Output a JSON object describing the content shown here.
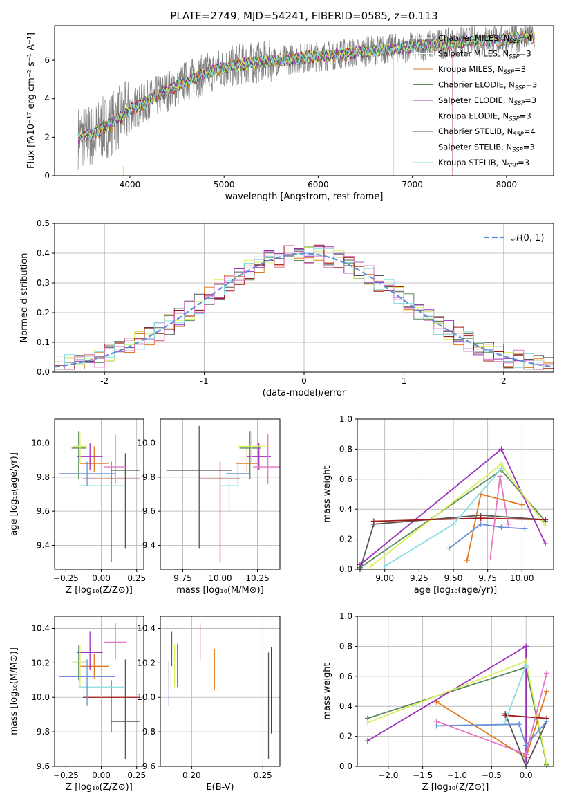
{
  "chart_data": [
    {
      "id": "spectrum",
      "type": "line",
      "title": "PLATE=2749, MJD=54241, FIBERID=0585, z=0.113",
      "xlabel": "wavelength [Angstrom, rest frame]",
      "ylabel": "Flux [fλ10⁻¹⁷ erg cm⁻² s⁻¹ A⁻¹]",
      "xlim": [
        3200,
        8500
      ],
      "ylim": [
        0,
        7.8
      ],
      "xticks": [
        4000,
        5000,
        6000,
        7000,
        8000
      ],
      "yticks": [
        0,
        2,
        4,
        6
      ],
      "legend_position": "top-right",
      "data_continuum": {
        "x": [
          3450,
          3600,
          3800,
          4000,
          4200,
          4400,
          4600,
          4800,
          5000,
          5200,
          5400,
          5600,
          5800,
          6000,
          6200,
          6400,
          6600,
          6800,
          7000,
          7200,
          7400,
          7600,
          7800,
          8000,
          8200,
          8300
        ],
        "y": [
          2.0,
          2.1,
          2.7,
          3.4,
          3.9,
          4.4,
          4.9,
          5.3,
          5.6,
          5.8,
          5.9,
          6.0,
          6.1,
          6.2,
          6.3,
          6.4,
          6.5,
          6.6,
          6.7,
          6.8,
          6.9,
          7.0,
          7.05,
          7.1,
          7.2,
          7.2
        ]
      },
      "series": [
        {
          "name": "Chabrier MILES, N$_{SSP}$=4",
          "label": "Chabrier MILES, N",
          "sub": "SSP",
          "suffix": "=4",
          "color": "#ffffff"
        },
        {
          "name": "Salpeter MILES, N$_{SSP}$=3",
          "label": "Salpeter MILES, N",
          "sub": "SSP",
          "suffix": "=3",
          "color": "#ffffff"
        },
        {
          "name": "Kroupa MILES, N$_{SSP}$=3",
          "label": "Kroupa MILES, N",
          "sub": "SSP",
          "suffix": "=3",
          "color": "#e07b22"
        },
        {
          "name": "Chabrier ELODIE, N$_{SSP}$=3",
          "label": "Chabrier ELODIE, N",
          "sub": "SSP",
          "suffix": "=3",
          "color": "#5a8a5a"
        },
        {
          "name": "Salpeter ELODIE, N$_{SSP}$=3",
          "label": "Salpeter ELODIE, N",
          "sub": "SSP",
          "suffix": "=3",
          "color": "#9b30b8"
        },
        {
          "name": "Kroupa ELODIE, N$_{SSP}$=3",
          "label": "Kroupa ELODIE, N",
          "sub": "SSP",
          "suffix": "=3",
          "color": "#d9f25a"
        },
        {
          "name": "Chabrier STELIB, N$_{SSP}$=4",
          "label": "Chabrier STELIB, N",
          "sub": "SSP",
          "suffix": "=4",
          "color": "#555555"
        },
        {
          "name": "Salpeter STELIB, N$_{SSP}$=3",
          "label": "Salpeter STELIB, N",
          "sub": "SSP",
          "suffix": "=3",
          "color": "#a01818"
        },
        {
          "name": "Kroupa STELIB, N$_{SSP}$=3",
          "label": "Kroupa STELIB, N",
          "sub": "SSP",
          "suffix": "=3",
          "color": "#88dde0"
        }
      ]
    },
    {
      "id": "residuals",
      "type": "bar",
      "xlabel": "(data-model)/error",
      "ylabel": "Normed distribution",
      "xlim": [
        -2.5,
        2.5
      ],
      "ylim": [
        0,
        0.5
      ],
      "xticks": [
        -2,
        -1,
        0,
        1,
        2
      ],
      "yticks": [
        0.0,
        0.1,
        0.2,
        0.3,
        0.4,
        0.5
      ],
      "legend": "𝒩(0, 1)",
      "bin_width": 0.1,
      "bin_start": -2.5,
      "colors": [
        "#e07b22",
        "#5a8a5a",
        "#9b30b8",
        "#d9f25a",
        "#555555",
        "#a01818",
        "#88dde0",
        "#e377c2"
      ]
    },
    {
      "id": "age-vs-Z",
      "type": "scatter",
      "xlabel": "Z [log₁₀(Z/Z⊙)]",
      "ylabel": "age  [log₁₀(age/yr)]",
      "xlim": [
        -0.33,
        0.3
      ],
      "ylim": [
        9.26,
        10.14
      ],
      "xticks": [
        -0.25,
        0.0,
        0.25
      ],
      "xticklabels": [
        "−0.25",
        "0.00",
        "0.25"
      ],
      "yticks": [
        9.4,
        9.6,
        9.8,
        10.0
      ],
      "points": [
        {
          "x": -0.05,
          "y": 9.88,
          "xerr": 0.1,
          "yerr_lo": 0.05,
          "yerr_hi": 0.1,
          "color": "#e07b22"
        },
        {
          "x": -0.16,
          "y": 9.97,
          "xerr": 0.05,
          "yerr_lo": 0.18,
          "yerr_hi": 0.1,
          "color": "#5a8a5a"
        },
        {
          "x": -0.08,
          "y": 9.92,
          "xerr": 0.09,
          "yerr_lo": 0.08,
          "yerr_hi": 0.08,
          "color": "#9b30b8"
        },
        {
          "x": -0.15,
          "y": 9.98,
          "xerr": 0.05,
          "yerr_lo": 0.1,
          "yerr_hi": 0.08,
          "color": "#d9f25a"
        },
        {
          "x": 0.17,
          "y": 9.84,
          "xerr": 0.1,
          "yerr_lo": 0.46,
          "yerr_hi": 0.1,
          "color": "#555555"
        },
        {
          "x": 0.07,
          "y": 9.79,
          "xerr": 0.2,
          "yerr_lo": 0.49,
          "yerr_hi": 0.1,
          "color": "#a01818"
        },
        {
          "x": 0.0,
          "y": 9.75,
          "xerr": 0.16,
          "yerr_lo": 0.15,
          "yerr_hi": 0.1,
          "color": "#88dde0"
        },
        {
          "x": -0.1,
          "y": 9.82,
          "xerr": 0.2,
          "yerr_lo": 0.07,
          "yerr_hi": 0.07,
          "color": "#6a8fd8"
        },
        {
          "x": 0.1,
          "y": 9.86,
          "xerr": 0.08,
          "yerr_lo": 0.1,
          "yerr_hi": 0.19,
          "color": "#e377c2"
        }
      ]
    },
    {
      "id": "age-vs-mass",
      "type": "scatter",
      "xlabel": "mass [log₁₀(M/M⊙)]",
      "xlim": [
        9.6,
        10.4
      ],
      "ylim": [
        9.26,
        10.14
      ],
      "xticks": [
        9.75,
        10.0,
        10.25
      ],
      "xticklabels": [
        "9.75",
        "10.00",
        "10.25"
      ],
      "yticks": [
        9.4,
        9.6,
        9.8,
        10.0
      ],
      "points": [
        {
          "x": 10.18,
          "y": 9.88,
          "xerr": 0.07,
          "yerr_lo": 0.05,
          "yerr_hi": 0.1,
          "color": "#e07b22"
        },
        {
          "x": 10.2,
          "y": 9.97,
          "xerr": 0.07,
          "yerr_lo": 0.18,
          "yerr_hi": 0.1,
          "color": "#5a8a5a"
        },
        {
          "x": 10.26,
          "y": 9.92,
          "xerr": 0.08,
          "yerr_lo": 0.08,
          "yerr_hi": 0.08,
          "color": "#9b30b8"
        },
        {
          "x": 10.21,
          "y": 9.98,
          "xerr": 0.09,
          "yerr_lo": 0.1,
          "yerr_hi": 0.08,
          "color": "#d9f25a"
        },
        {
          "x": 9.86,
          "y": 9.84,
          "xerr": 0.22,
          "yerr_lo": 0.46,
          "yerr_hi": 0.26,
          "color": "#555555"
        },
        {
          "x": 10.0,
          "y": 9.79,
          "xerr": 0.13,
          "yerr_lo": 0.49,
          "yerr_hi": 0.1,
          "color": "#a01818"
        },
        {
          "x": 10.06,
          "y": 9.75,
          "xerr": 0.06,
          "yerr_lo": 0.15,
          "yerr_hi": 0.1,
          "color": "#88dde0"
        },
        {
          "x": 10.12,
          "y": 9.82,
          "xerr": 0.08,
          "yerr_lo": 0.07,
          "yerr_hi": 0.07,
          "color": "#6a8fd8"
        },
        {
          "x": 10.32,
          "y": 9.86,
          "xerr": 0.1,
          "yerr_lo": 0.1,
          "yerr_hi": 0.19,
          "color": "#e377c2"
        }
      ]
    },
    {
      "id": "mass-weight-vs-age",
      "type": "line",
      "xlabel": "age  [log₁₀(age/yr)]",
      "ylabel": "mass weight",
      "xlim": [
        8.8,
        10.23
      ],
      "ylim": [
        0,
        1.0
      ],
      "xticks": [
        9.0,
        9.25,
        9.5,
        9.75,
        10.0
      ],
      "xticklabels": [
        "9.00",
        "9.25",
        "9.50",
        "9.75",
        "10.00"
      ],
      "yticks": [
        0.0,
        0.2,
        0.4,
        0.6,
        0.8,
        1.0
      ],
      "series": [
        {
          "color": "#e07b22",
          "x": [
            9.6,
            9.7,
            10.0
          ],
          "y": [
            0.06,
            0.5,
            0.43
          ]
        },
        {
          "color": "#5a8a5a",
          "x": [
            8.82,
            9.85,
            10.17
          ],
          "y": [
            0.01,
            0.66,
            0.32
          ]
        },
        {
          "color": "#9b30b8",
          "x": [
            8.82,
            9.85,
            10.17
          ],
          "y": [
            0.03,
            0.8,
            0.17
          ]
        },
        {
          "color": "#d9f25a",
          "x": [
            8.9,
            9.85,
            10.17
          ],
          "y": [
            0.02,
            0.7,
            0.29
          ]
        },
        {
          "color": "#555555",
          "x": [
            8.82,
            8.92,
            9.7,
            10.17
          ],
          "y": [
            0.0,
            0.3,
            0.36,
            0.33
          ]
        },
        {
          "color": "#a01818",
          "x": [
            8.92,
            9.7,
            10.17
          ],
          "y": [
            0.32,
            0.34,
            0.33
          ]
        },
        {
          "color": "#88dde0",
          "x": [
            9.0,
            9.5,
            9.85
          ],
          "y": [
            0.02,
            0.3,
            0.67
          ]
        },
        {
          "color": "#6a8fd8",
          "x": [
            9.47,
            9.7,
            9.85,
            10.02
          ],
          "y": [
            0.14,
            0.3,
            0.28,
            0.27
          ]
        },
        {
          "color": "#e377c2",
          "x": [
            9.77,
            9.84,
            9.9
          ],
          "y": [
            0.08,
            0.62,
            0.3
          ]
        }
      ]
    },
    {
      "id": "mass-vs-Z",
      "type": "scatter",
      "xlabel": "Z [log₁₀(Z/Z⊙)]",
      "ylabel": "mass [log₁₀(M/M⊙)]",
      "xlim": [
        -0.33,
        0.3
      ],
      "ylim": [
        9.6,
        10.47
      ],
      "xticks": [
        -0.25,
        0.0,
        0.25
      ],
      "xticklabels": [
        "−0.25",
        "0.00",
        "0.25"
      ],
      "yticks": [
        9.6,
        9.8,
        10.0,
        10.2,
        10.4
      ],
      "points": [
        {
          "x": -0.05,
          "y": 10.18,
          "xerr": 0.1,
          "yerr_lo": 0.07,
          "yerr_hi": 0.07,
          "color": "#e07b22"
        },
        {
          "x": -0.16,
          "y": 10.2,
          "xerr": 0.05,
          "yerr_lo": 0.1,
          "yerr_hi": 0.1,
          "color": "#5a8a5a"
        },
        {
          "x": -0.08,
          "y": 10.26,
          "xerr": 0.09,
          "yerr_lo": 0.1,
          "yerr_hi": 0.12,
          "color": "#9b30b8"
        },
        {
          "x": -0.15,
          "y": 10.21,
          "xerr": 0.05,
          "yerr_lo": 0.15,
          "yerr_hi": 0.09,
          "color": "#d9f25a"
        },
        {
          "x": 0.17,
          "y": 9.86,
          "xerr": 0.1,
          "yerr_lo": 0.22,
          "yerr_hi": 0.36,
          "color": "#555555"
        },
        {
          "x": 0.07,
          "y": 10.0,
          "xerr": 0.2,
          "yerr_lo": 0.2,
          "yerr_hi": 0.1,
          "color": "#a01818"
        },
        {
          "x": 0.0,
          "y": 10.06,
          "xerr": 0.16,
          "yerr_lo": 0.06,
          "yerr_hi": 0.06,
          "color": "#88dde0"
        },
        {
          "x": -0.1,
          "y": 10.12,
          "xerr": 0.2,
          "yerr_lo": 0.17,
          "yerr_hi": 0.1,
          "color": "#6a8fd8"
        },
        {
          "x": 0.1,
          "y": 10.32,
          "xerr": 0.08,
          "yerr_lo": 0.1,
          "yerr_hi": 0.11,
          "color": "#e377c2"
        }
      ]
    },
    {
      "id": "mass-vs-EBV",
      "type": "scatter",
      "xlabel": "E(B-V)",
      "xlim": [
        0.178,
        0.262
      ],
      "ylim": [
        9.6,
        10.47
      ],
      "xticks": [
        0.2,
        0.25
      ],
      "xticklabels": [
        "0.20",
        "0.25"
      ],
      "yticks": [
        9.6,
        9.8,
        10.0,
        10.2,
        10.4
      ],
      "points": [
        {
          "x": 0.216,
          "y": 10.16,
          "yerr_lo": 0.12,
          "yerr_hi": 0.12,
          "color": "#e07b22"
        },
        {
          "x": 0.19,
          "y": 10.18,
          "yerr_lo": 0.12,
          "yerr_hi": 0.13,
          "color": "#5a8a5a"
        },
        {
          "x": 0.186,
          "y": 10.28,
          "yerr_lo": 0.1,
          "yerr_hi": 0.1,
          "color": "#9b30b8"
        },
        {
          "x": 0.188,
          "y": 10.18,
          "yerr_lo": 0.12,
          "yerr_hi": 0.13,
          "color": "#d9f25a"
        },
        {
          "x": 0.254,
          "y": 9.95,
          "yerr_lo": 0.31,
          "yerr_hi": 0.31,
          "color": "#555555"
        },
        {
          "x": 0.256,
          "y": 10.04,
          "yerr_lo": 0.25,
          "yerr_hi": 0.25,
          "color": "#a01818"
        },
        {
          "x": 0.2,
          "y": 10.02,
          "yerr_lo": 0.1,
          "yerr_hi": 0.1,
          "color": "#88dde0"
        },
        {
          "x": 0.184,
          "y": 10.08,
          "yerr_lo": 0.13,
          "yerr_hi": 0.13,
          "color": "#6a8fd8"
        },
        {
          "x": 0.206,
          "y": 10.32,
          "yerr_lo": 0.11,
          "yerr_hi": 0.11,
          "color": "#e377c2"
        }
      ]
    },
    {
      "id": "mass-weight-vs-Z",
      "type": "line",
      "xlabel": "Z [log₁₀(Z/Z⊙)]",
      "ylabel": "mass weight",
      "xlim": [
        -2.45,
        0.4
      ],
      "ylim": [
        0,
        1.0
      ],
      "xticks": [
        -2.0,
        -1.5,
        -1.0,
        -0.5,
        0.0
      ],
      "xticklabels": [
        "−2.0",
        "−1.5",
        "−1.0",
        "−0.5",
        "0.0"
      ],
      "yticks": [
        0.0,
        0.2,
        0.4,
        0.6,
        0.8,
        1.0
      ],
      "series": [
        {
          "color": "#e07b22",
          "x": [
            -1.3,
            0.0,
            0.3
          ],
          "y": [
            0.43,
            0.06,
            0.5
          ]
        },
        {
          "color": "#5a8a5a",
          "x": [
            -2.3,
            0.0,
            0.3
          ],
          "y": [
            0.32,
            0.66,
            0.01
          ]
        },
        {
          "color": "#9b30b8",
          "x": [
            -2.3,
            0.0,
            0.0
          ],
          "y": [
            0.17,
            0.8,
            0.03
          ]
        },
        {
          "color": "#d9f25a",
          "x": [
            -2.3,
            0.0,
            0.3
          ],
          "y": [
            0.29,
            0.7,
            0.02
          ]
        },
        {
          "color": "#555555",
          "x": [
            -0.3,
            0.0,
            0.3
          ],
          "y": [
            0.35,
            0.0,
            0.3
          ]
        },
        {
          "color": "#a01818",
          "x": [
            -0.3,
            0.3
          ],
          "y": [
            0.34,
            0.32
          ]
        },
        {
          "color": "#88dde0",
          "x": [
            -0.3,
            0.0
          ],
          "y": [
            0.3,
            0.67
          ]
        },
        {
          "color": "#6a8fd8",
          "x": [
            -1.3,
            -0.1,
            0.0,
            0.3
          ],
          "y": [
            0.27,
            0.28,
            0.14,
            0.3
          ]
        },
        {
          "color": "#e377c2",
          "x": [
            -1.3,
            0.0,
            0.3
          ],
          "y": [
            0.3,
            0.08,
            0.62
          ]
        }
      ]
    }
  ]
}
